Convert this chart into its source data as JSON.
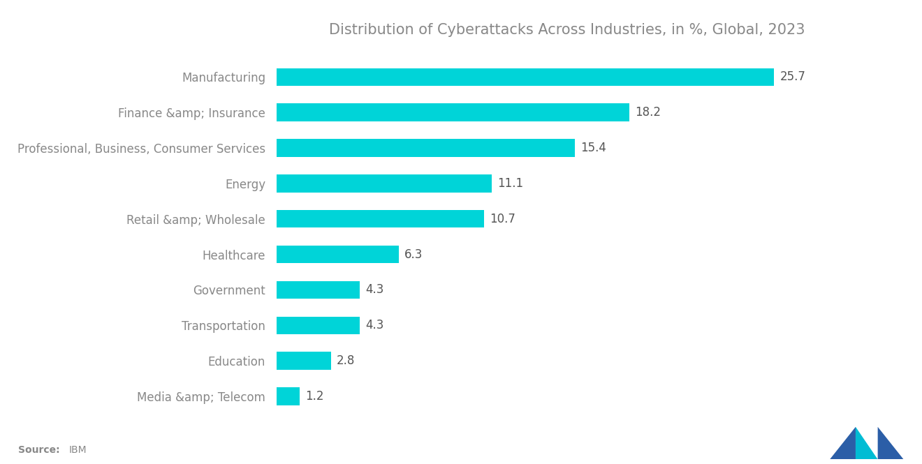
{
  "title": "Distribution of Cyberattacks Across Industries, in %, Global, 2023",
  "categories": [
    "Manufacturing",
    "Finance &amp; Insurance",
    "Professional, Business, Consumer Services",
    "Energy",
    "Retail &amp; Wholesale",
    "Healthcare",
    "Government",
    "Transportation",
    "Education",
    "Media &amp; Telecom"
  ],
  "values": [
    25.7,
    18.2,
    15.4,
    11.1,
    10.7,
    6.3,
    4.3,
    4.3,
    2.8,
    1.2
  ],
  "bar_color": "#00D4D8",
  "title_color": "#888888",
  "label_color": "#888888",
  "value_color": "#555555",
  "source_label": "Source: ",
  "source_value": "IBM",
  "background_color": "#ffffff",
  "title_fontsize": 15,
  "label_fontsize": 12,
  "value_fontsize": 12,
  "source_fontsize": 10,
  "bar_height": 0.5,
  "xlim": [
    0,
    30
  ]
}
